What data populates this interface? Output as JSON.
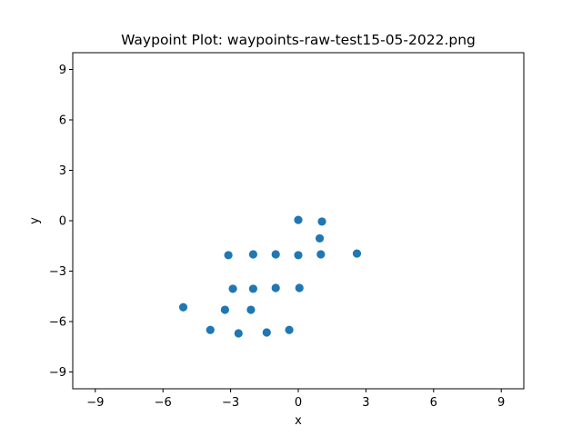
{
  "chart_data": {
    "type": "scatter",
    "title": "Waypoint Plot: waypoints-raw-test15-05-2022.png",
    "xlabel": "x",
    "ylabel": "y",
    "xlim": [
      -10,
      10
    ],
    "ylim": [
      -10,
      10
    ],
    "xticks": [
      -9,
      -6,
      -3,
      0,
      3,
      6,
      9
    ],
    "yticks": [
      -9,
      -6,
      -3,
      0,
      3,
      6,
      9
    ],
    "xtick_labels": [
      "−9",
      "−6",
      "−3",
      "0",
      "3",
      "6",
      "9"
    ],
    "ytick_labels": [
      "−9",
      "−6",
      "−3",
      "0",
      "3",
      "6",
      "9"
    ],
    "grid": false,
    "marker_color": "#1f77b4",
    "points": [
      {
        "x": 0.0,
        "y": 0.05
      },
      {
        "x": 1.05,
        "y": -0.05
      },
      {
        "x": 0.95,
        "y": -1.05
      },
      {
        "x": -3.1,
        "y": -2.05
      },
      {
        "x": -2.0,
        "y": -2.0
      },
      {
        "x": -1.0,
        "y": -2.0
      },
      {
        "x": 0.0,
        "y": -2.05
      },
      {
        "x": 1.0,
        "y": -2.0
      },
      {
        "x": 2.6,
        "y": -1.95
      },
      {
        "x": -2.9,
        "y": -4.05
      },
      {
        "x": -2.0,
        "y": -4.05
      },
      {
        "x": -1.0,
        "y": -4.0
      },
      {
        "x": 0.05,
        "y": -4.0
      },
      {
        "x": -5.1,
        "y": -5.15
      },
      {
        "x": -3.25,
        "y": -5.3
      },
      {
        "x": -2.1,
        "y": -5.3
      },
      {
        "x": -3.9,
        "y": -6.5
      },
      {
        "x": -2.65,
        "y": -6.7
      },
      {
        "x": -1.4,
        "y": -6.65
      },
      {
        "x": -0.4,
        "y": -6.5
      }
    ]
  }
}
